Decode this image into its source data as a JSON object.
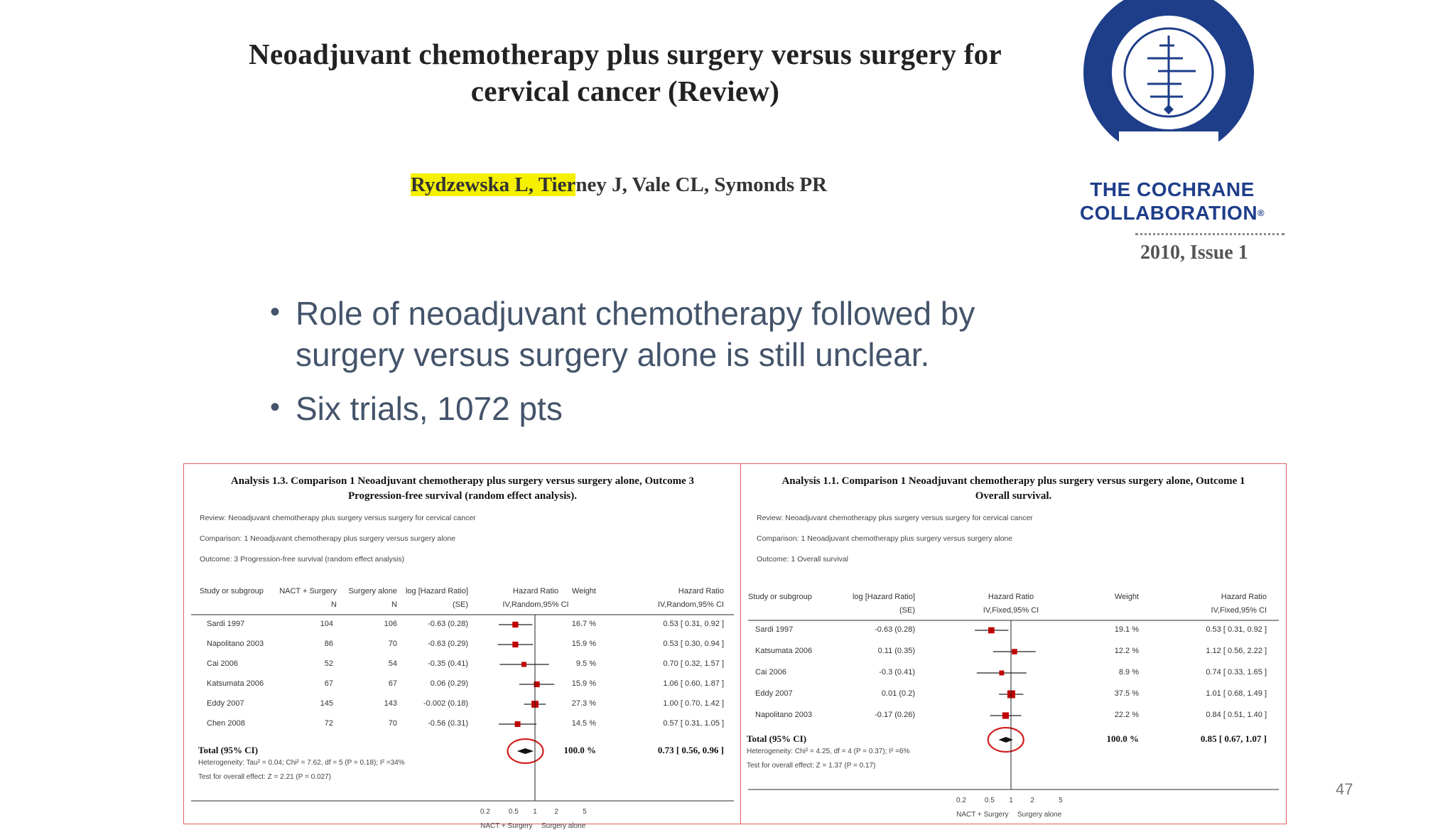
{
  "header": {
    "title_line1": "Neoadjuvant chemotherapy plus surgery versus surgery for",
    "title_line2": "cervical cancer (Review)",
    "authors_highlighted": "Rydzewska L, Tier",
    "authors_rest": "ney J, Vale CL, Symonds PR",
    "citation": "2010, Issue 1"
  },
  "logo": {
    "line1": "THE COCHRANE",
    "line2": "COLLABORATION",
    "reg_mark": "®",
    "colors": {
      "ring": "#1e3e8a"
    }
  },
  "bullets": [
    "Role of neoadjuvant chemotherapy followed by surgery versus surgery alone is still unclear.",
    "Six trials, 1072 pts"
  ],
  "page_number": "47",
  "colors": {
    "marker": "#c00000",
    "panel_border": "#e06060",
    "circle": "#d42020",
    "bullet_text": "#44546a"
  },
  "chart_data": [
    {
      "type": "forest",
      "title_line1": "Analysis 1.3.   Comparison 1 Neoadjuvant chemotherapy plus surgery versus surgery alone, Outcome 3",
      "title_line2": "Progression-free survival (random effect analysis).",
      "review": "Review:    Neoadjuvant chemotherapy plus surgery versus surgery for cervical cancer",
      "comparison": "Comparison:    1 Neoadjuvant chemotherapy plus surgery versus surgery alone",
      "outcome": "Outcome:    3 Progression-free survival (random effect analysis)",
      "columns": {
        "study": "Study or subgroup",
        "nact": "NACT + Surgery",
        "nact_sub": "N",
        "surg": "Surgery alone",
        "surg_sub": "N",
        "loghr": "log [Hazard Ratio]",
        "loghr_sub": "(SE)",
        "hr": "Hazard Ratio",
        "hr_sub": "IV,Random,95% CI",
        "weight": "Weight",
        "hr2": "Hazard Ratio",
        "hr2_sub": "IV,Random,95% CI"
      },
      "studies": [
        {
          "name": "Sardi 1997",
          "n1": "104",
          "n2": "106",
          "loghr": "-0.63 (0.28)",
          "weight": "16.7 %",
          "ci_text": "0.53 [ 0.31, 0.92 ]",
          "hr": 0.53,
          "lo": 0.31,
          "hi": 0.92,
          "w": 16.7
        },
        {
          "name": "Napolitano 2003",
          "n1": "86",
          "n2": "70",
          "loghr": "-0.63 (0.29)",
          "weight": "15.9 %",
          "ci_text": "0.53 [ 0.30, 0.94 ]",
          "hr": 0.53,
          "lo": 0.3,
          "hi": 0.94,
          "w": 15.9
        },
        {
          "name": "Cai 2006",
          "n1": "52",
          "n2": "54",
          "loghr": "-0.35 (0.41)",
          "weight": "9.5 %",
          "ci_text": "0.70 [ 0.32, 1.57 ]",
          "hr": 0.7,
          "lo": 0.32,
          "hi": 1.57,
          "w": 9.5
        },
        {
          "name": "Katsumata 2006",
          "n1": "67",
          "n2": "67",
          "loghr": "0.06 (0.29)",
          "weight": "15.9 %",
          "ci_text": "1.06 [ 0.60, 1.87 ]",
          "hr": 1.06,
          "lo": 0.6,
          "hi": 1.87,
          "w": 15.9
        },
        {
          "name": "Eddy 2007",
          "n1": "145",
          "n2": "143",
          "loghr": "-0.002 (0.18)",
          "weight": "27.3 %",
          "ci_text": "1.00 [ 0.70, 1.42 ]",
          "hr": 1.0,
          "lo": 0.7,
          "hi": 1.42,
          "w": 27.3
        },
        {
          "name": "Chen 2008",
          "n1": "72",
          "n2": "70",
          "loghr": "-0.56 (0.31)",
          "weight": "14.5 %",
          "ci_text": "0.57 [ 0.31, 1.05 ]",
          "hr": 0.57,
          "lo": 0.31,
          "hi": 1.05,
          "w": 14.5
        }
      ],
      "total": {
        "label": "Total (95% CI)",
        "weight": "100.0 %",
        "ci_text": "0.73 [ 0.56, 0.96 ]",
        "hr": 0.73,
        "lo": 0.56,
        "hi": 0.96
      },
      "heterogeneity": "Heterogeneity: Tau² = 0.04; Chi² = 7.62, df = 5 (P = 0.18); I² =34%",
      "overall_effect": "Test for overall effect: Z = 2.21 (P = 0.027)",
      "x_ticks": [
        "0.2",
        "0.5",
        "1",
        "2",
        "5"
      ],
      "x_tick_values": [
        0.2,
        0.5,
        1,
        2,
        5
      ],
      "x_scale": "log",
      "favours_left": "NACT + Surgery",
      "favours_right": "Surgery alone"
    },
    {
      "type": "forest",
      "title_line1": "Analysis 1.1.   Comparison 1 Neoadjuvant chemotherapy plus surgery versus surgery alone, Outcome 1",
      "title_line2": "Overall survival.",
      "review": "Review:    Neoadjuvant chemotherapy plus surgery versus surgery for cervical cancer",
      "comparison": "Comparison:    1 Neoadjuvant chemotherapy plus surgery versus surgery alone",
      "outcome": "Outcome:    1 Overall survival",
      "columns": {
        "study": "Study or subgroup",
        "loghr": "log [Hazard Ratio]",
        "loghr_sub": "(SE)",
        "hr": "Hazard Ratio",
        "hr_sub": "IV,Fixed,95% CI",
        "weight": "Weight",
        "hr2": "Hazard Ratio",
        "hr2_sub": "IV,Fixed,95% CI"
      },
      "studies": [
        {
          "name": "Sardi 1997",
          "loghr": "-0.63 (0.28)",
          "weight": "19.1 %",
          "ci_text": "0.53 [ 0.31, 0.92 ]",
          "hr": 0.53,
          "lo": 0.31,
          "hi": 0.92,
          "w": 19.1
        },
        {
          "name": "Katsumata 2006",
          "loghr": "0.11 (0.35)",
          "weight": "12.2 %",
          "ci_text": "1.12 [ 0.56, 2.22 ]",
          "hr": 1.12,
          "lo": 0.56,
          "hi": 2.22,
          "w": 12.2
        },
        {
          "name": "Cai 2006",
          "loghr": "-0.3 (0.41)",
          "weight": "8.9 %",
          "ci_text": "0.74 [ 0.33, 1.65 ]",
          "hr": 0.74,
          "lo": 0.33,
          "hi": 1.65,
          "w": 8.9
        },
        {
          "name": "Eddy 2007",
          "loghr": "0.01 (0.2)",
          "weight": "37.5 %",
          "ci_text": "1.01 [ 0.68, 1.49 ]",
          "hr": 1.01,
          "lo": 0.68,
          "hi": 1.49,
          "w": 37.5
        },
        {
          "name": "Napolitano 2003",
          "loghr": "-0.17 (0.26)",
          "weight": "22.2 %",
          "ci_text": "0.84 [ 0.51, 1.40 ]",
          "hr": 0.84,
          "lo": 0.51,
          "hi": 1.4,
          "w": 22.2
        }
      ],
      "total": {
        "label": "Total (95% CI)",
        "weight": "100.0 %",
        "ci_text": "0.85 [ 0.67, 1.07 ]",
        "hr": 0.85,
        "lo": 0.67,
        "hi": 1.07
      },
      "heterogeneity": "Heterogeneity: Chi² = 4.25, df = 4 (P = 0.37); I² =6%",
      "overall_effect": "Test for overall effect: Z = 1.37 (P = 0.17)",
      "x_ticks": [
        "0.2",
        "0.5",
        "1",
        "2",
        "5"
      ],
      "x_tick_values": [
        0.2,
        0.5,
        1,
        2,
        5
      ],
      "x_scale": "log",
      "favours_left": "NACT + Surgery",
      "favours_right": "Surgery alone"
    }
  ]
}
